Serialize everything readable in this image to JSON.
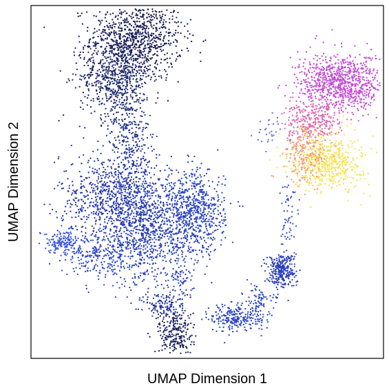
{
  "chart_data": {
    "type": "scatter",
    "title": "",
    "xlabel": "UMAP Dimension 1",
    "ylabel": "UMAP Dimension 2",
    "x_ticks": [],
    "y_ticks": [],
    "xlim": [
      0,
      100
    ],
    "ylim": [
      0,
      100
    ],
    "grid": false,
    "legend": "none",
    "color_scale": [
      "#1a1a4a",
      "#1f2f8a",
      "#2a45c8",
      "#3a5ef0",
      "#d94ad8",
      "#f06a9a",
      "#ffef4a"
    ],
    "clusters": [
      {
        "name": "",
        "x": 30,
        "y": 91,
        "sx": 6.5,
        "sy": 6,
        "n": 900,
        "color": "#1b1e55"
      },
      {
        "name": "",
        "x": 24,
        "y": 80,
        "sx": 5,
        "sy": 6,
        "n": 650,
        "color": "#1e2a70"
      },
      {
        "name": "",
        "x": 28,
        "y": 63,
        "sx": 3,
        "sy": 6,
        "n": 260,
        "color": "#23368f"
      },
      {
        "name": "",
        "x": 24,
        "y": 46,
        "sx": 8,
        "sy": 6,
        "n": 800,
        "color": "#2639a8"
      },
      {
        "name": "",
        "x": 33,
        "y": 36,
        "sx": 7,
        "sy": 7,
        "n": 950,
        "color": "#2840b8"
      },
      {
        "name": "",
        "x": 47,
        "y": 41,
        "sx": 4,
        "sy": 6,
        "n": 600,
        "color": "#2a44c2"
      },
      {
        "name": "",
        "x": 9,
        "y": 33,
        "sx": 2.5,
        "sy": 1.5,
        "n": 160,
        "color": "#3657ea"
      },
      {
        "name": "",
        "x": 20,
        "y": 29,
        "sx": 5,
        "sy": 3,
        "n": 220,
        "color": "#2c48cc"
      },
      {
        "name": "",
        "x": 42,
        "y": 22,
        "sx": 2,
        "sy": 3,
        "n": 60,
        "color": "#2c45c0"
      },
      {
        "name": "",
        "x": 41,
        "y": 7,
        "sx": 2.5,
        "sy": 4,
        "n": 260,
        "color": "#1c2160"
      },
      {
        "name": "",
        "x": 38,
        "y": 15,
        "sx": 3,
        "sy": 2,
        "n": 120,
        "color": "#2436a0"
      },
      {
        "name": "",
        "x": 57,
        "y": 11.5,
        "sx": 3,
        "sy": 2,
        "n": 200,
        "color": "#2a42c0"
      },
      {
        "name": "",
        "x": 64,
        "y": 15,
        "sx": 2,
        "sy": 3,
        "n": 120,
        "color": "#2d48cc"
      },
      {
        "name": "",
        "x": 71,
        "y": 25,
        "sx": 2,
        "sy": 2.5,
        "n": 300,
        "color": "#2a3fbf"
      },
      {
        "name": "",
        "x": 73,
        "y": 40,
        "sx": 1.5,
        "sy": 6,
        "n": 60,
        "color": "#3a4ed8"
      },
      {
        "name": "",
        "x": 88,
        "y": 78,
        "sx": 6,
        "sy": 4,
        "n": 900,
        "color": "#c44ad6"
      },
      {
        "name": "",
        "x": 80,
        "y": 67,
        "sx": 4,
        "sy": 3,
        "n": 300,
        "color": "#e066b0"
      },
      {
        "name": "",
        "x": 84,
        "y": 56,
        "sx": 5,
        "sy": 4,
        "n": 600,
        "color": "#f7e24f"
      },
      {
        "name": "",
        "x": 78,
        "y": 58,
        "sx": 3,
        "sy": 4,
        "n": 200,
        "color": "#f39a7a"
      },
      {
        "name": "",
        "x": 68,
        "y": 63,
        "sx": 2,
        "sy": 3,
        "n": 30,
        "color": "#5a6ee6"
      }
    ]
  }
}
